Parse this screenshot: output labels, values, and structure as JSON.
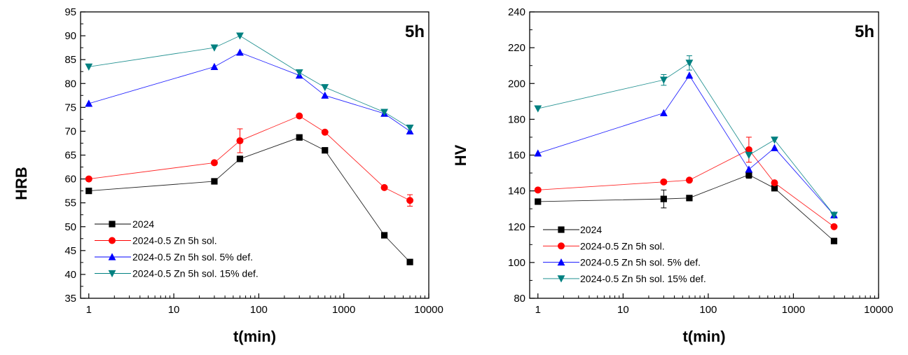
{
  "chart_data": [
    {
      "type": "line",
      "xscale": "log",
      "xlabel": "t(min)",
      "ylabel": "HRB",
      "panel_label": "5h",
      "xlim": [
        0.8,
        10000
      ],
      "ylim": [
        35,
        95
      ],
      "xticks": [
        1,
        10,
        100,
        1000,
        10000
      ],
      "xtick_labels": [
        "1",
        "10",
        "100",
        "1000",
        "10000"
      ],
      "yticks": [
        35,
        40,
        45,
        50,
        55,
        60,
        65,
        70,
        75,
        80,
        85,
        90,
        95
      ],
      "ytick_labels": [
        "35",
        "40",
        "45",
        "50",
        "55",
        "60",
        "65",
        "70",
        "75",
        "80",
        "85",
        "90",
        "95"
      ],
      "legend_position": "bottom-left",
      "series": [
        {
          "name": "2024",
          "marker": "square",
          "color": "#000000",
          "x": [
            1,
            30,
            60,
            300,
            600,
            3000,
            6000
          ],
          "y": [
            57.5,
            59.5,
            64.2,
            68.7,
            66.0,
            48.2,
            42.6
          ],
          "err": [
            0,
            0,
            0,
            0,
            0,
            0,
            0
          ]
        },
        {
          "name": "2024-0.5 Zn 5h sol.",
          "marker": "circle",
          "color": "#ff0000",
          "x": [
            1,
            30,
            60,
            300,
            600,
            3000,
            6000
          ],
          "y": [
            60.0,
            63.4,
            68.0,
            73.2,
            69.8,
            58.2,
            55.5
          ],
          "err": [
            0,
            0,
            2.5,
            0,
            0,
            0,
            1.2
          ]
        },
        {
          "name": "2024-0.5 Zn 5h sol. 5% def.",
          "marker": "triangle-up",
          "color": "#0000ff",
          "x": [
            1,
            30,
            60,
            300,
            600,
            3000,
            6000
          ],
          "y": [
            75.8,
            83.5,
            86.5,
            81.7,
            77.5,
            73.7,
            70.0
          ],
          "err": [
            0,
            0,
            0,
            0,
            0,
            0,
            0
          ]
        },
        {
          "name": "2024-0.5 Zn 5h sol. 15% def.",
          "marker": "triangle-down",
          "color": "#008080",
          "x": [
            1,
            30,
            60,
            300,
            600,
            3000,
            6000
          ],
          "y": [
            83.5,
            87.5,
            90.0,
            82.3,
            79.2,
            74.0,
            70.7
          ],
          "err": [
            0,
            0,
            0,
            0,
            0,
            0,
            0
          ]
        }
      ]
    },
    {
      "type": "line",
      "xscale": "log",
      "xlabel": "t(min)",
      "ylabel": "HV",
      "panel_label": "5h",
      "xlim": [
        0.8,
        10000
      ],
      "ylim": [
        80,
        240
      ],
      "xticks": [
        1,
        10,
        100,
        1000,
        10000
      ],
      "xtick_labels": [
        "1",
        "10",
        "100",
        "1000",
        "10000"
      ],
      "yticks": [
        80,
        100,
        120,
        140,
        160,
        180,
        200,
        220,
        240
      ],
      "ytick_labels": [
        "80",
        "100",
        "120",
        "140",
        "160",
        "180",
        "200",
        "220",
        "240"
      ],
      "legend_position": "bottom-left",
      "series": [
        {
          "name": "2024",
          "marker": "square",
          "color": "#000000",
          "x": [
            1,
            30,
            60,
            300,
            600,
            3000
          ],
          "y": [
            134,
            135.5,
            136,
            149,
            141.5,
            112
          ],
          "err": [
            0,
            5,
            0,
            2,
            0,
            0
          ]
        },
        {
          "name": "2024-0.5 Zn 5h sol.",
          "marker": "circle",
          "color": "#ff0000",
          "x": [
            1,
            30,
            60,
            300,
            600,
            3000
          ],
          "y": [
            140.5,
            145,
            146,
            163,
            144.5,
            120
          ],
          "err": [
            0,
            0,
            0,
            7,
            0,
            0
          ]
        },
        {
          "name": "2024-0.5 Zn 5h sol. 5% def.",
          "marker": "triangle-up",
          "color": "#0000ff",
          "x": [
            1,
            30,
            60,
            300,
            600,
            3000
          ],
          "y": [
            161,
            183.5,
            204.5,
            152,
            164,
            126.5
          ],
          "err": [
            0,
            0,
            0,
            0,
            0,
            0
          ]
        },
        {
          "name": "2024-0.5 Zn 5h sol. 15% def.",
          "marker": "triangle-down",
          "color": "#008080",
          "x": [
            1,
            30,
            60,
            300,
            600,
            3000
          ],
          "y": [
            186,
            202,
            211.5,
            160,
            168.5,
            126.5
          ],
          "err": [
            0,
            3,
            4,
            0,
            0,
            0
          ]
        }
      ]
    }
  ]
}
